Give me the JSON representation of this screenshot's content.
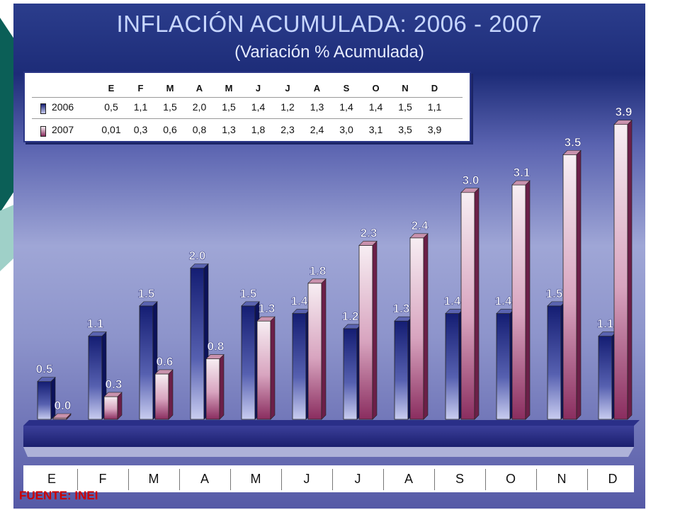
{
  "chart_data": {
    "type": "bar",
    "title": "INFLACIÓN ACUMULADA: 2006 - 2007",
    "subtitle": "(Variación % Acumulada)",
    "categories": [
      "E",
      "F",
      "M",
      "A",
      "M",
      "J",
      "J",
      "A",
      "S",
      "O",
      "N",
      "D"
    ],
    "series": [
      {
        "name": "2006",
        "values": [
          0.5,
          1.1,
          1.5,
          2.0,
          1.5,
          1.4,
          1.2,
          1.3,
          1.4,
          1.4,
          1.5,
          1.1
        ],
        "bar_labels": [
          "0.5",
          "1.1",
          "1.5",
          "2.0",
          "1.5",
          "1.4",
          "1.2",
          "1.3",
          "1.4",
          "1.4",
          "1.5",
          "1.1"
        ],
        "table_values": [
          "0,5",
          "1,1",
          "1,5",
          "2,0",
          "1,5",
          "1,4",
          "1,2",
          "1,3",
          "1,4",
          "1,4",
          "1,5",
          "1,1"
        ],
        "color": "#1f2a86"
      },
      {
        "name": "2007",
        "values": [
          0.01,
          0.3,
          0.6,
          0.8,
          1.3,
          1.8,
          2.3,
          2.4,
          3.0,
          3.1,
          3.5,
          3.9
        ],
        "bar_labels": [
          "0.0",
          "0.3",
          "0.6",
          "0.8",
          "1.3",
          "1.8",
          "2.3",
          "2.4",
          "3.0",
          "3.1",
          "3.5",
          "3.9"
        ],
        "table_values": [
          "0,01",
          "0,3",
          "0,6",
          "0,8",
          "1,3",
          "1,8",
          "2,3",
          "2,4",
          "3,0",
          "3,1",
          "3,5",
          "3,9"
        ],
        "color": "#8a2d5f"
      }
    ],
    "ylim": [
      0,
      4.0
    ],
    "xlabel": "",
    "ylabel": "",
    "legend": "data table at top-left",
    "grid": false
  },
  "source": "FUENTE: INEI",
  "colors": {
    "background_top": "#1d2c78",
    "background_mid": "#9fa6d6",
    "title_text": "#c7d6ff",
    "source_text": "#cc0000"
  }
}
